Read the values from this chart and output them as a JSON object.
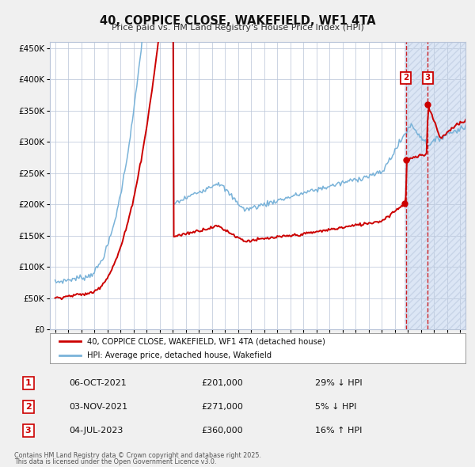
{
  "title": "40, COPPICE CLOSE, WAKEFIELD, WF1 4TA",
  "subtitle": "Price paid vs. HM Land Registry's House Price Index (HPI)",
  "legend_line1": "40, COPPICE CLOSE, WAKEFIELD, WF1 4TA (detached house)",
  "legend_line2": "HPI: Average price, detached house, Wakefield",
  "transactions": [
    {
      "label": "1",
      "date": "06-OCT-2021",
      "price": "£201,000",
      "hpi_pct": "29% ↓ HPI",
      "x_year": 2021.75,
      "y_val": 201000
    },
    {
      "label": "2",
      "date": "03-NOV-2021",
      "price": "£271,000",
      "hpi_pct": "5% ↓ HPI",
      "x_year": 2021.83,
      "y_val": 271000
    },
    {
      "label": "3",
      "date": "04-JUL-2023",
      "price": "£360,000",
      "hpi_pct": "16% ↑ HPI",
      "x_year": 2023.5,
      "y_val": 360000
    }
  ],
  "footnote1": "Contains HM Land Registry data © Crown copyright and database right 2025.",
  "footnote2": "This data is licensed under the Open Government Licence v3.0.",
  "hpi_color": "#7ab3d9",
  "price_color": "#cc0000",
  "fig_bg_color": "#f0f0f0",
  "plot_bg_color": "#ffffff",
  "future_bg_color": "#dce6f5",
  "grid_color": "#b8c4d8",
  "ylim": [
    0,
    460000
  ],
  "xlim_start": 1994.6,
  "xlim_end": 2026.4,
  "future_start": 2021.75,
  "yticks": [
    0,
    50000,
    100000,
    150000,
    200000,
    250000,
    300000,
    350000,
    400000,
    450000
  ]
}
